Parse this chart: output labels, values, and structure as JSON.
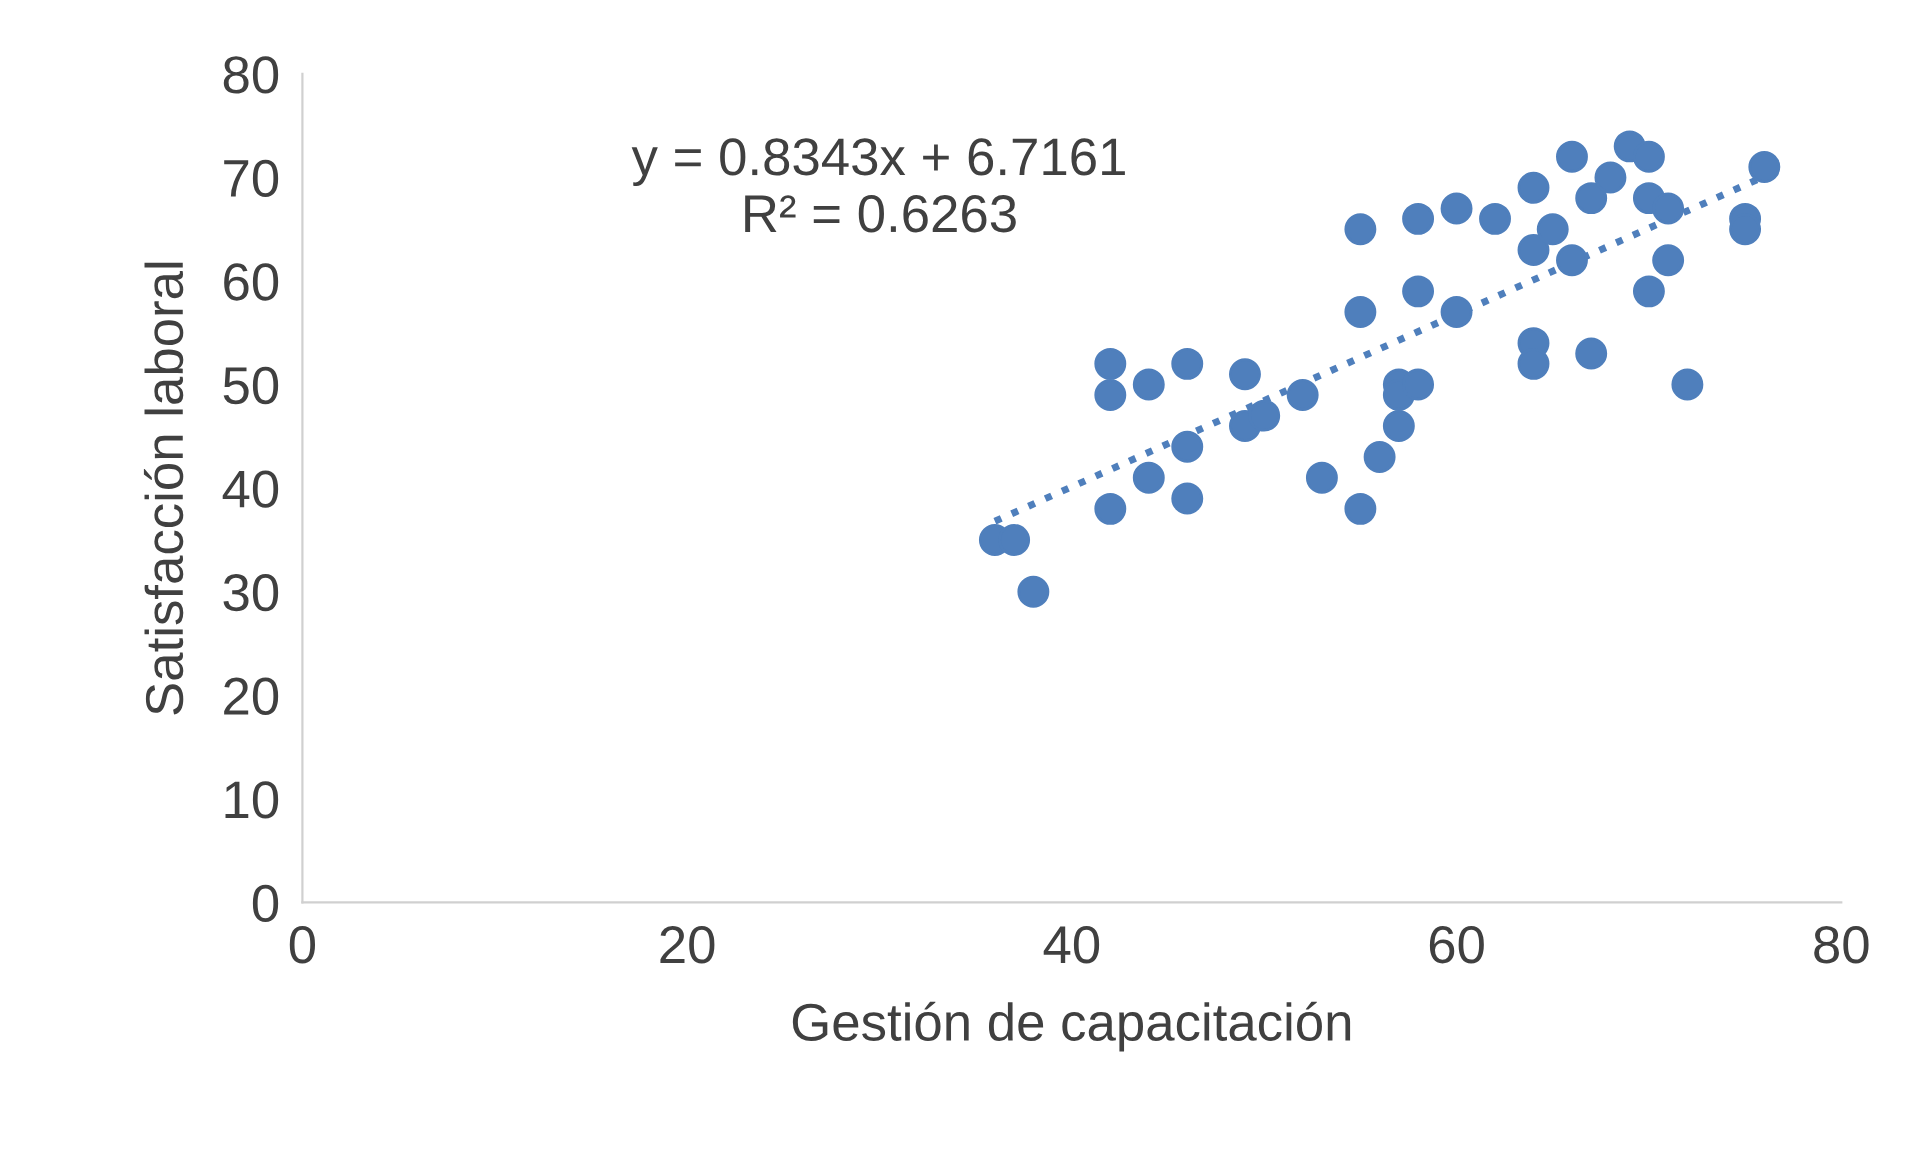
{
  "chart_data": {
    "type": "scatter",
    "xlabel": "Gestión de capacitación",
    "ylabel": "Satisfacción laboral",
    "xlim": [
      0,
      80
    ],
    "xticks": [
      0,
      20,
      40,
      60,
      80
    ],
    "ylim": [
      0,
      80
    ],
    "yticks": [
      0,
      10,
      20,
      30,
      40,
      50,
      60,
      70,
      80
    ],
    "grid": false,
    "marker": "circle",
    "annotations": [
      "y = 0.8343x + 6.7161\nR² = 0.6263"
    ],
    "series": [
      {
        "color": "#4f7fbc",
        "x": [
          36,
          37,
          38,
          42,
          42,
          42,
          44,
          44,
          46,
          46,
          46,
          49,
          49,
          50,
          52,
          53,
          55,
          55,
          55,
          56,
          57,
          57,
          57,
          58,
          58,
          58,
          60,
          60,
          62,
          64,
          64,
          64,
          64,
          65,
          66,
          66,
          67,
          67,
          68,
          69,
          70,
          70,
          70,
          71,
          71,
          72,
          75,
          75,
          76
        ],
        "values": [
          35,
          35,
          30,
          52,
          49,
          38,
          50,
          41,
          52,
          44,
          39,
          51,
          46,
          47,
          49,
          41,
          65,
          57,
          38,
          43,
          50,
          49,
          46,
          66,
          59,
          50,
          67,
          57,
          66,
          69,
          63,
          54,
          52,
          65,
          72,
          62,
          68,
          53,
          70,
          73,
          72,
          68,
          59,
          67,
          62,
          50,
          66,
          65,
          71
        ]
      },
      {
        "type": "line",
        "color": "#4f7fbc",
        "line_style": "dotted",
        "marker": "none",
        "x": [
          36,
          76
        ],
        "values": [
          36.8,
          70.1
        ]
      }
    ]
  }
}
